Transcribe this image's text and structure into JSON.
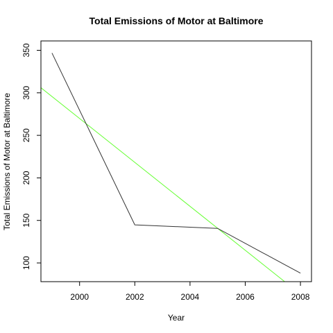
{
  "chart_data": {
    "type": "line",
    "title": "Total Emissions of Motor at Baltimore",
    "xlabel": "Year",
    "ylabel": "Total Emissions of Motor at Baltimore",
    "xlim": [
      1998.6,
      2008.4
    ],
    "ylim": [
      78,
      361
    ],
    "x_ticks": [
      2000,
      2002,
      2004,
      2006,
      2008
    ],
    "x_tick_labels": [
      "2000",
      "2002",
      "2004",
      "2006",
      "2008"
    ],
    "y_ticks": [
      100,
      150,
      200,
      250,
      300,
      350
    ],
    "y_tick_labels": [
      "100",
      "150",
      "200",
      "250",
      "300",
      "350"
    ],
    "grid": false,
    "series": [
      {
        "style": "line",
        "color": "#333333",
        "x": [
          1999,
          2002,
          2005,
          2008
        ],
        "y": [
          346.8,
          144.8,
          140.6,
          88.0
        ]
      }
    ],
    "trend_line": {
      "color": "#66ff33",
      "x": [
        1998.6,
        2007.43
      ],
      "y": [
        306.0,
        78.0
      ]
    }
  }
}
